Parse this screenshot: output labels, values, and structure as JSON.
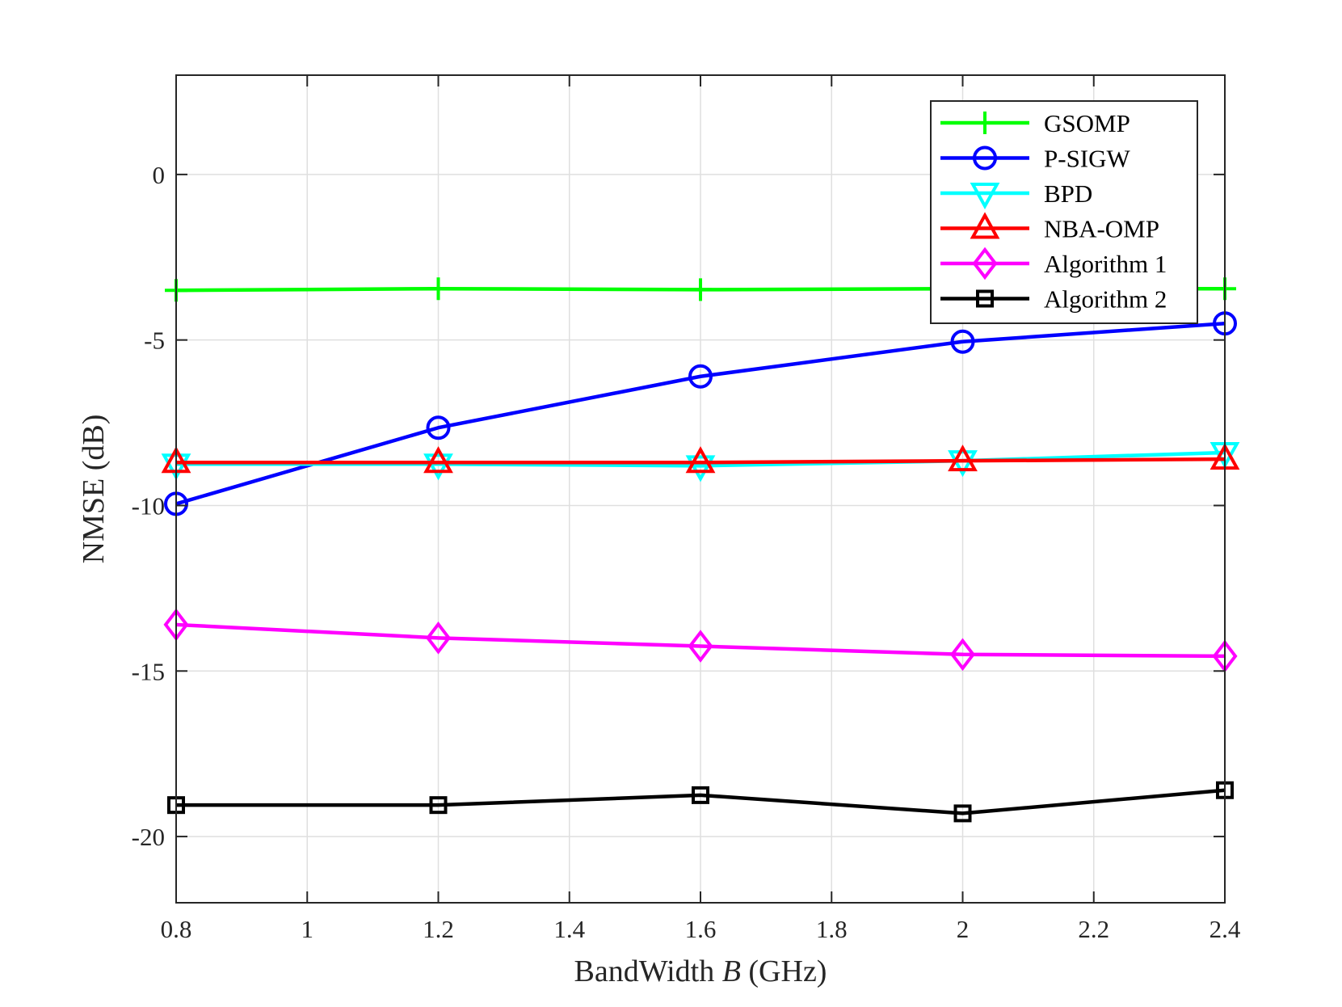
{
  "chart_data": {
    "type": "line",
    "title": "",
    "xlabel_parts": [
      "BandWidth ",
      "B",
      " (GHz)"
    ],
    "ylabel": "NMSE (dB)",
    "xlim": [
      0.8,
      2.4
    ],
    "ylim": [
      -22,
      3
    ],
    "x_ticks": [
      0.8,
      1,
      1.2,
      1.4,
      1.6,
      1.8,
      2,
      2.2,
      2.4
    ],
    "x_tick_labels": [
      "0.8",
      "1",
      "1.2",
      "1.4",
      "1.6",
      "1.8",
      "2",
      "2.2",
      "2.4"
    ],
    "y_ticks": [
      0,
      -5,
      -10,
      -15,
      -20
    ],
    "y_tick_labels": [
      "0",
      "-5",
      "-10",
      "-15",
      "-20"
    ],
    "grid": true,
    "legend_position": "top-right",
    "x": [
      0.8,
      1.2,
      1.6,
      2.0,
      2.4
    ],
    "series": [
      {
        "name": "GSOMP",
        "color": "#00ff00",
        "marker": "plus",
        "values": [
          -3.5,
          -3.45,
          -3.48,
          -3.45,
          -3.45
        ]
      },
      {
        "name": "P-SIGW",
        "color": "#0000ff",
        "marker": "circle",
        "values": [
          -9.95,
          -7.65,
          -6.1,
          -5.05,
          -4.5
        ]
      },
      {
        "name": "BPD",
        "color": "#00ffff",
        "marker": "triangle-down",
        "values": [
          -8.75,
          -8.75,
          -8.8,
          -8.65,
          -8.4
        ]
      },
      {
        "name": "NBA-OMP",
        "color": "#ff0000",
        "marker": "triangle-up",
        "values": [
          -8.7,
          -8.7,
          -8.7,
          -8.65,
          -8.6
        ]
      },
      {
        "name": "Algorithm 1",
        "color": "#ff00ff",
        "marker": "diamond",
        "values": [
          -13.6,
          -14.0,
          -14.25,
          -14.5,
          -14.55
        ]
      },
      {
        "name": "Algorithm 2",
        "color": "#000000",
        "marker": "square",
        "values": [
          -19.05,
          -19.05,
          -18.75,
          -19.3,
          -18.6
        ]
      }
    ]
  }
}
